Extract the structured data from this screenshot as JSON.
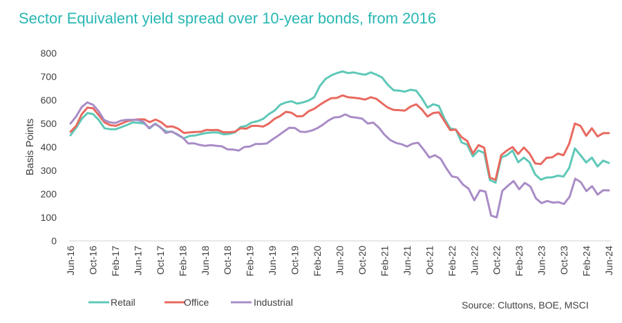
{
  "title": "Sector Equivalent yield spread over 10-year bonds, from 2016",
  "source": "Source: Cluttons, BOE, MSCI",
  "colors": {
    "retail": "#5ec8b8",
    "office": "#e8695f",
    "industrial": "#a98cc6",
    "axis": "#d9d9d9",
    "text": "#404040",
    "title": "#27b7b3"
  },
  "chart_data": {
    "type": "line",
    "title": "Sector Equivalent yield spread over 10-year bonds, from 2016",
    "ylabel": "Basis Points",
    "xlabel": "",
    "ylim": [
      0,
      800
    ],
    "yticks": [
      "0",
      "100",
      "200",
      "300",
      "400",
      "500",
      "600",
      "700",
      "800"
    ],
    "xticks": [
      "Jun-16",
      "Oct-16",
      "Feb-17",
      "Jun-17",
      "Oct-17",
      "Feb-18",
      "Jun-18",
      "Oct-18",
      "Feb-19",
      "Jun-19",
      "Oct-19",
      "Feb-20",
      "Jun-20",
      "Oct-20",
      "Feb-21",
      "Jun-21",
      "Oct-21",
      "Feb-22",
      "Jun-22",
      "Oct-22",
      "Feb-23",
      "Jun-23",
      "Oct-23",
      "Feb-24",
      "Jun-24"
    ],
    "grid": false,
    "legend": "bottom-left",
    "series": [
      {
        "name": "Retail",
        "values": [
          450,
          482,
          520,
          545,
          540,
          515,
          480,
          476,
          476,
          485,
          494,
          505,
          503,
          500,
          480,
          500,
          480,
          465,
          465,
          450,
          437,
          447,
          449,
          455,
          460,
          462,
          462,
          454,
          456,
          462,
          485,
          490,
          505,
          510,
          520,
          540,
          555,
          580,
          590,
          595,
          585,
          590,
          598,
          612,
          660,
          690,
          705,
          715,
          722,
          715,
          718,
          712,
          708,
          718,
          708,
          696,
          665,
          642,
          640,
          636,
          644,
          640,
          608,
          568,
          582,
          575,
          520,
          480,
          474,
          420,
          410,
          360,
          385,
          375,
          260,
          248,
          355,
          365,
          385,
          335,
          355,
          335,
          283,
          261,
          270,
          271,
          278,
          274,
          311,
          394,
          365,
          334,
          355,
          317,
          342,
          332
        ]
      },
      {
        "name": "Office",
        "values": [
          465,
          490,
          540,
          568,
          565,
          535,
          505,
          493,
          490,
          500,
          510,
          515,
          518,
          518,
          506,
          517,
          506,
          486,
          488,
          478,
          460,
          462,
          464,
          465,
          473,
          472,
          473,
          463,
          463,
          465,
          480,
          478,
          490,
          490,
          487,
          500,
          520,
          532,
          550,
          546,
          530,
          532,
          552,
          563,
          580,
          595,
          608,
          609,
          620,
          612,
          610,
          607,
          602,
          612,
          605,
          586,
          568,
          558,
          557,
          555,
          572,
          582,
          560,
          530,
          545,
          548,
          510,
          472,
          474,
          442,
          426,
          372,
          408,
          397,
          270,
          260,
          365,
          385,
          400,
          370,
          398,
          372,
          330,
          327,
          354,
          356,
          372,
          365,
          414,
          500,
          490,
          448,
          480,
          445,
          459,
          459
        ]
      },
      {
        "name": "Industrial",
        "values": [
          500,
          530,
          570,
          590,
          580,
          553,
          515,
          505,
          502,
          512,
          516,
          516,
          515,
          508,
          480,
          498,
          486,
          460,
          466,
          455,
          440,
          415,
          416,
          409,
          405,
          408,
          405,
          403,
          390,
          389,
          385,
          400,
          402,
          413,
          413,
          415,
          432,
          448,
          465,
          482,
          481,
          465,
          464,
          470,
          480,
          495,
          513,
          526,
          528,
          539,
          528,
          525,
          521,
          500,
          504,
          482,
          452,
          430,
          418,
          412,
          402,
          414,
          418,
          388,
          355,
          365,
          350,
          310,
          275,
          270,
          240,
          222,
          173,
          215,
          210,
          108,
          100,
          213,
          235,
          255,
          220,
          247,
          232,
          181,
          161,
          170,
          163,
          165,
          157,
          188,
          265,
          250,
          212,
          233,
          197,
          216,
          215
        ]
      }
    ]
  }
}
